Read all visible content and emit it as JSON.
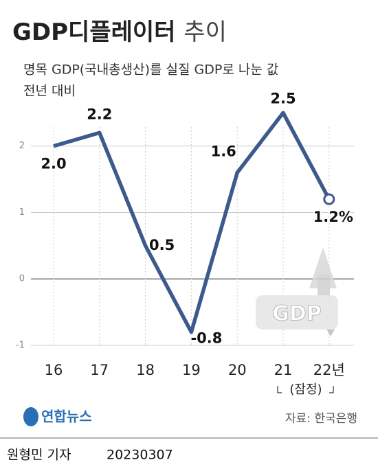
{
  "chart_data": {
    "type": "line",
    "title": "GDP디플레이터",
    "title_suffix": "추이",
    "subtitle": [
      "명목 GDP(국내총생산)를 실질 GDP로 나눈 값",
      "전년 대비"
    ],
    "categories": [
      "16",
      "17",
      "18",
      "19",
      "20",
      "21",
      "22년"
    ],
    "category_note": "(잠정)",
    "values": [
      2.0,
      2.2,
      0.5,
      -0.8,
      1.6,
      2.5,
      1.2
    ],
    "value_labels": [
      "2.0",
      "2.2",
      "0.5",
      "-0.8",
      "1.6",
      "2.5",
      "1.2%"
    ],
    "color": "#3d5a8c",
    "ylim": [
      -1,
      2.7
    ],
    "yticks": [
      -1,
      0,
      1,
      2
    ],
    "grid": true,
    "graphic_text": "GDP",
    "logo": "연합뉴스",
    "source": "자료: 한국은행",
    "byline": "원형민 기자",
    "date": "20230307"
  }
}
